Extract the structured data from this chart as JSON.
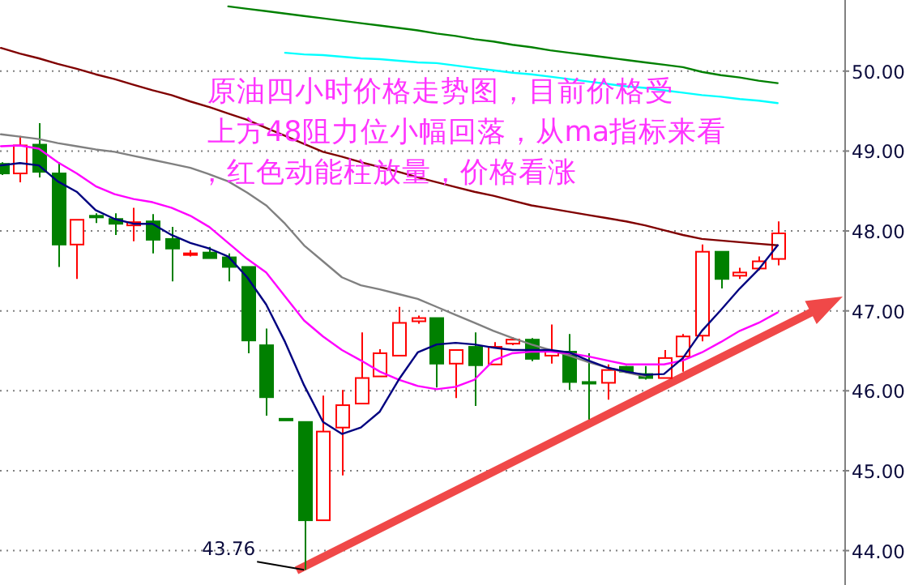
{
  "chart_data": {
    "type": "candlestick",
    "categories": [
      null,
      null,
      null,
      null,
      null,
      null,
      null,
      null,
      null,
      null,
      null,
      null,
      null,
      null,
      null,
      null,
      null,
      null,
      null,
      null,
      null,
      null,
      null,
      null,
      null,
      null,
      null,
      null,
      null,
      null,
      null,
      null,
      null,
      null,
      null,
      null,
      null,
      null,
      null,
      null,
      null,
      null
    ],
    "ohlc": [
      [
        48.84,
        48.86,
        48.7,
        48.72
      ],
      [
        48.72,
        49.19,
        48.61,
        49.07
      ],
      [
        49.08,
        49.35,
        48.67,
        48.74
      ],
      [
        48.72,
        48.86,
        47.55,
        47.83
      ],
      [
        47.83,
        48.14,
        47.4,
        48.14
      ],
      [
        48.19,
        48.22,
        48.1,
        48.18
      ],
      [
        48.15,
        48.22,
        47.95,
        48.09
      ],
      [
        48.07,
        48.29,
        47.87,
        48.11
      ],
      [
        48.12,
        48.21,
        47.72,
        47.89
      ],
      [
        47.9,
        48.05,
        47.37,
        47.78
      ],
      [
        47.7,
        47.76,
        47.68,
        47.72
      ],
      [
        47.73,
        47.8,
        47.66,
        47.66
      ],
      [
        47.67,
        47.72,
        47.37,
        47.55
      ],
      [
        47.55,
        47.55,
        46.47,
        46.63
      ],
      [
        46.57,
        46.78,
        45.69,
        45.92
      ],
      [
        45.65,
        45.65,
        45.63,
        45.63
      ],
      [
        45.61,
        45.61,
        43.76,
        44.38
      ],
      [
        44.38,
        45.94,
        44.38,
        45.49
      ],
      [
        45.54,
        46.01,
        44.94,
        45.82
      ],
      [
        45.84,
        46.73,
        45.84,
        46.16
      ],
      [
        46.18,
        46.52,
        46.18,
        46.47
      ],
      [
        46.44,
        47.05,
        46.44,
        46.85
      ],
      [
        46.87,
        46.94,
        46.84,
        46.91
      ],
      [
        46.91,
        46.91,
        46.04,
        46.34
      ],
      [
        46.34,
        46.51,
        45.91,
        46.51
      ],
      [
        46.55,
        46.73,
        45.81,
        46.32
      ],
      [
        46.33,
        46.61,
        46.33,
        46.55
      ],
      [
        46.59,
        46.67,
        46.57,
        46.64
      ],
      [
        46.64,
        46.66,
        46.37,
        46.4
      ],
      [
        46.44,
        46.83,
        46.34,
        46.49
      ],
      [
        46.49,
        46.71,
        46.01,
        46.11
      ],
      [
        46.11,
        46.47,
        45.64,
        46.1
      ],
      [
        46.1,
        46.33,
        45.89,
        46.26
      ],
      [
        46.3,
        46.31,
        46.22,
        46.24
      ],
      [
        46.21,
        46.31,
        46.14,
        46.16
      ],
      [
        46.16,
        46.51,
        46.16,
        46.41
      ],
      [
        46.43,
        46.71,
        46.24,
        46.68
      ],
      [
        46.69,
        47.83,
        46.62,
        47.74
      ],
      [
        47.74,
        47.74,
        47.28,
        47.4
      ],
      [
        47.44,
        47.54,
        47.4,
        47.48
      ],
      [
        47.53,
        47.68,
        47.51,
        47.62
      ],
      [
        47.65,
        48.12,
        47.57,
        47.97
      ]
    ],
    "series": [
      {
        "type": "line",
        "color": "#808080",
        "values": [
          49.21,
          49.18,
          49.15,
          49.1,
          49.06,
          49.02,
          48.99,
          48.94,
          48.89,
          48.84,
          48.79,
          48.71,
          48.62,
          48.48,
          48.32,
          48.09,
          47.82,
          47.62,
          47.42,
          47.32,
          47.27,
          47.21,
          47.15,
          47.05,
          46.95,
          46.85,
          46.75,
          46.66,
          46.58,
          46.51,
          46.44,
          46.36,
          46.29,
          46.23,
          46.18,
          null,
          null,
          null,
          null,
          null,
          null,
          null
        ]
      },
      {
        "type": "line",
        "color": "#800000",
        "values": [
          50.29,
          50.22,
          50.16,
          50.09,
          50.03,
          49.96,
          49.9,
          49.83,
          49.76,
          49.7,
          49.62,
          49.55,
          49.47,
          49.39,
          49.29,
          49.19,
          49.09,
          48.99,
          48.93,
          48.86,
          48.8,
          48.74,
          48.67,
          48.61,
          48.55,
          48.49,
          48.44,
          48.38,
          48.32,
          48.28,
          48.24,
          48.2,
          48.16,
          48.12,
          48.07,
          48.01,
          47.95,
          47.9,
          47.88,
          47.86,
          47.84,
          47.82
        ]
      },
      {
        "type": "line",
        "color": "#00ffff",
        "values": [
          null,
          null,
          null,
          null,
          null,
          null,
          null,
          null,
          null,
          null,
          null,
          null,
          null,
          null,
          null,
          50.23,
          50.21,
          50.2,
          50.18,
          50.16,
          50.15,
          50.13,
          50.11,
          50.1,
          50.07,
          50.04,
          50.01,
          49.98,
          49.96,
          49.93,
          49.9,
          49.87,
          49.84,
          49.81,
          49.79,
          49.76,
          49.73,
          49.7,
          49.68,
          49.65,
          49.63,
          49.6
        ]
      },
      {
        "type": "line",
        "color": "#008000",
        "values": [
          null,
          null,
          null,
          null,
          null,
          null,
          null,
          null,
          null,
          null,
          null,
          null,
          50.81,
          50.78,
          50.75,
          50.72,
          50.69,
          50.66,
          50.63,
          50.6,
          50.57,
          50.54,
          50.51,
          50.47,
          50.44,
          50.4,
          50.37,
          50.33,
          50.3,
          50.26,
          50.23,
          50.2,
          50.17,
          50.14,
          50.11,
          50.08,
          50.05,
          49.99,
          49.95,
          49.92,
          49.88,
          49.85
        ]
      },
      {
        "type": "line",
        "color": "#ff00ff",
        "values": [
          49.06,
          49.07,
          49.03,
          48.86,
          48.72,
          48.56,
          48.46,
          48.4,
          48.36,
          48.29,
          48.19,
          48.05,
          47.85,
          47.65,
          47.48,
          47.18,
          46.88,
          46.68,
          46.51,
          46.38,
          46.24,
          46.14,
          46.06,
          46.02,
          46.05,
          46.14,
          46.38,
          46.47,
          46.49,
          46.49,
          46.47,
          46.43,
          46.38,
          46.33,
          46.33,
          46.33,
          46.38,
          46.48,
          46.61,
          46.75,
          46.85,
          46.98
        ]
      },
      {
        "type": "line",
        "color": "#000080",
        "values": [
          48.82,
          48.85,
          48.82,
          48.62,
          48.49,
          48.26,
          48.15,
          48.09,
          48.09,
          47.95,
          47.85,
          47.78,
          47.68,
          47.42,
          47.08,
          46.61,
          46.07,
          45.61,
          45.46,
          45.54,
          45.74,
          46.14,
          46.48,
          46.58,
          46.6,
          46.58,
          46.54,
          46.51,
          46.51,
          46.51,
          46.48,
          46.38,
          46.29,
          46.24,
          46.2,
          46.21,
          46.41,
          46.75,
          47.01,
          47.28,
          47.52,
          47.82
        ]
      }
    ],
    "ylim": [
      43.57,
      50.89
    ],
    "yticks": [
      {
        "value": 44,
        "label": "44.00"
      },
      {
        "value": 45,
        "label": "45.00"
      },
      {
        "value": 46,
        "label": "46.00"
      },
      {
        "value": 47,
        "label": "47.00"
      },
      {
        "value": 48,
        "label": "48.00"
      },
      {
        "value": 49,
        "label": "49.00"
      },
      {
        "value": 50,
        "label": "50.00"
      }
    ],
    "grid": "y",
    "tick_labels": "y",
    "annotations": [
      "原油四小时价格走势图，目前价格受",
      "上方48阻力位小幅回落，从ma指标来看",
      "，红色动能柱放量，价格看涨",
      "43.76"
    ]
  }
}
